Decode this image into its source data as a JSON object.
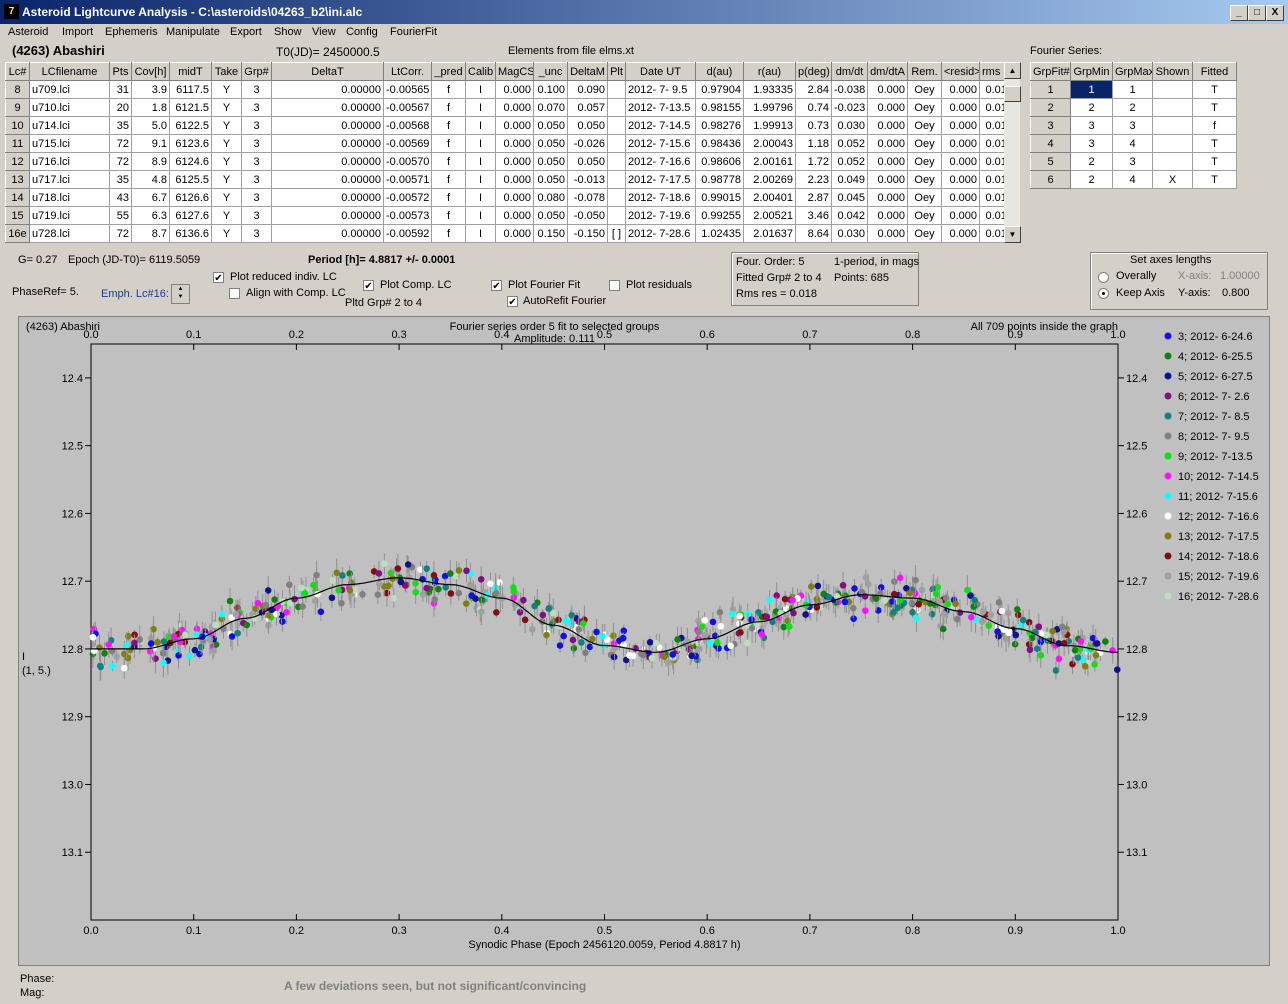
{
  "window": {
    "title": "Asteroid Lightcurve Analysis - C:\\asteroids\\04263_b2\\ini.alc",
    "icon": "app-icon",
    "buttons": [
      "_",
      "□",
      "X"
    ]
  },
  "menu": [
    "Asteroid",
    "Import",
    "Ephemeris",
    "Manipulate",
    "Export",
    "Show",
    "View",
    "Config",
    "FourierFit"
  ],
  "header": {
    "asteroid": "(4263) Abashiri",
    "t0": "T0(JD)= 2450000.5",
    "elements": "Elements from file elms.xt",
    "fourier_label": "Fourier Series:"
  },
  "lc_table": {
    "columns": [
      "Lc#",
      "LCfilename",
      "Pts",
      "Cov[h]",
      "midT",
      "Take",
      "Grp#",
      "DeltaT",
      "LtCorr.",
      "_pred",
      "Calib",
      "MagCS",
      "_unc",
      "DeltaM",
      "Plt",
      "Date UT",
      "d(au)",
      "r(au)",
      "p(deg)",
      "dm/dt",
      "dm/dtA",
      "Rem.",
      "<resid>",
      "rms res"
    ],
    "rows": [
      [
        "8",
        "u709.lci",
        "31",
        "3.9",
        "6117.5",
        "Y",
        "3",
        "0.00000",
        "-0.00565",
        "f",
        "I",
        "0.000",
        "0.100",
        "0.090",
        "",
        "2012- 7- 9.5",
        "0.97904",
        "1.93335",
        "2.84",
        "-0.038",
        "0.000",
        "Oey",
        "0.000",
        "0.014"
      ],
      [
        "9",
        "u710.lci",
        "20",
        "1.8",
        "6121.5",
        "Y",
        "3",
        "0.00000",
        "-0.00567",
        "f",
        "I",
        "0.000",
        "0.070",
        "0.057",
        "",
        "2012- 7-13.5",
        "0.98155",
        "1.99796",
        "0.74",
        "-0.023",
        "0.000",
        "Oey",
        "0.000",
        "0.013"
      ],
      [
        "10",
        "u714.lci",
        "35",
        "5.0",
        "6122.5",
        "Y",
        "3",
        "0.00000",
        "-0.00568",
        "f",
        "I",
        "0.000",
        "0.050",
        "0.050",
        "",
        "2012- 7-14.5",
        "0.98276",
        "1.99913",
        "0.73",
        "0.030",
        "0.000",
        "Oey",
        "0.000",
        "0.017"
      ],
      [
        "11",
        "u715.lci",
        "72",
        "9.1",
        "6123.6",
        "Y",
        "3",
        "0.00000",
        "-0.00569",
        "f",
        "I",
        "0.000",
        "0.050",
        "-0.026",
        "",
        "2012- 7-15.6",
        "0.98436",
        "2.00043",
        "1.18",
        "0.052",
        "0.000",
        "Oey",
        "0.000",
        "0.018"
      ],
      [
        "12",
        "u716.lci",
        "72",
        "8.9",
        "6124.6",
        "Y",
        "3",
        "0.00000",
        "-0.00570",
        "f",
        "I",
        "0.000",
        "0.050",
        "0.050",
        "",
        "2012- 7-16.6",
        "0.98606",
        "2.00161",
        "1.72",
        "0.052",
        "0.000",
        "Oey",
        "0.000",
        "0.016"
      ],
      [
        "13",
        "u717.lci",
        "35",
        "4.8",
        "6125.5",
        "Y",
        "3",
        "0.00000",
        "-0.00571",
        "f",
        "I",
        "0.000",
        "0.050",
        "-0.013",
        "",
        "2012- 7-17.5",
        "0.98778",
        "2.00269",
        "2.23",
        "0.049",
        "0.000",
        "Oey",
        "0.000",
        "0.014"
      ],
      [
        "14",
        "u718.lci",
        "43",
        "6.7",
        "6126.6",
        "Y",
        "3",
        "0.00000",
        "-0.00572",
        "f",
        "I",
        "0.000",
        "0.080",
        "-0.078",
        "",
        "2012- 7-18.6",
        "0.99015",
        "2.00401",
        "2.87",
        "0.045",
        "0.000",
        "Oey",
        "0.000",
        "0.014"
      ],
      [
        "15",
        "u719.lci",
        "55",
        "6.3",
        "6127.6",
        "Y",
        "3",
        "0.00000",
        "-0.00573",
        "f",
        "I",
        "0.000",
        "0.050",
        "-0.050",
        "",
        "2012- 7-19.6",
        "0.99255",
        "2.00521",
        "3.46",
        "0.042",
        "0.000",
        "Oey",
        "0.000",
        "0.016"
      ],
      [
        "16e",
        "u728.lci",
        "72",
        "8.7",
        "6136.6",
        "Y",
        "3",
        "0.00000",
        "-0.00592",
        "f",
        "I",
        "0.000",
        "0.150",
        "-0.150",
        "[ ]",
        "2012- 7-28.6",
        "1.02435",
        "2.01637",
        "8.64",
        "0.030",
        "0.000",
        "Oey",
        "0.000",
        "0.016"
      ]
    ]
  },
  "fourier_table": {
    "columns": [
      "GrpFit#",
      "GrpMin",
      "GrpMax",
      "Shown",
      "Fitted"
    ],
    "rows": [
      [
        "1",
        "1",
        "1",
        "",
        "T"
      ],
      [
        "2",
        "2",
        "2",
        "",
        "T"
      ],
      [
        "3",
        "3",
        "3",
        "",
        "f"
      ],
      [
        "4",
        "3",
        "4",
        "",
        "T"
      ],
      [
        "5",
        "2",
        "3",
        "",
        "T"
      ],
      [
        "6",
        "2",
        "4",
        "X",
        "T"
      ]
    ]
  },
  "controls": {
    "g": "G= 0.27",
    "epoch": "Epoch (JD-T0)= 6119.5059",
    "period": "Period [h]= 4.8817 +/- 0.0001",
    "phase_ref": "PhaseRef= 5.",
    "emph": "Emph. Lc#16:",
    "plot_reduced": "Plot reduced indiv. LC",
    "align_comp": "Align with Comp. LC",
    "plot_comp": "Plot Comp. LC",
    "pltd_grp": "Pltd Grp#  2   to   4",
    "plot_fourier": "Plot Fourier Fit",
    "autorefit": "AutoRefit Fourier",
    "plot_residuals": "Plot residuals",
    "checks": {
      "plot_reduced": true,
      "align_comp": false,
      "plot_comp": true,
      "plot_fourier": true,
      "autorefit": true,
      "plot_residuals": false
    }
  },
  "fit_info": {
    "order": "Four. Order:  5",
    "period_note": "1-period, in mags",
    "fitted": "Fitted Grp# 2 to 4",
    "points": "Points: 685",
    "rms": "Rms res     = 0.018"
  },
  "axes_box": {
    "title": "Set axes lengths",
    "overally": "Overally",
    "keep": "Keep Axis",
    "xaxis_label": "X-axis:",
    "xaxis_val": "1.00000",
    "yaxis_label": "Y-axis:",
    "yaxis_val": "0.800",
    "selected": "keep"
  },
  "footer": {
    "phase": "Phase:",
    "mag": "Mag:",
    "message": "A few deviations seen, but not significant/convincing"
  },
  "chart_data": {
    "type": "scatter",
    "title": "Fourier series order 5 fit to selected groups",
    "subtitle": "Amplitude: 0.111",
    "top_left": "(4263) Abashiri",
    "top_right": "All 709 points inside the graph",
    "xlabel": "Synodic Phase (Epoch 2456120.0059, Period 4.8817 h)",
    "ylabel": "I",
    "ylabel2": "(1, 5.)",
    "xlim": [
      0.0,
      1.0
    ],
    "ylim": [
      13.2,
      12.35
    ],
    "x_ticks": [
      "0.0",
      "0.1",
      "0.2",
      "0.3",
      "0.4",
      "0.5",
      "0.6",
      "0.7",
      "0.8",
      "0.9",
      "1.0"
    ],
    "y_ticks": [
      "12.4",
      "12.5",
      "12.6",
      "12.7",
      "12.8",
      "12.9",
      "13.0",
      "13.1"
    ],
    "fit": {
      "x": [
        0.0,
        0.05,
        0.1,
        0.15,
        0.2,
        0.25,
        0.3,
        0.35,
        0.4,
        0.45,
        0.5,
        0.55,
        0.6,
        0.65,
        0.7,
        0.75,
        0.8,
        0.85,
        0.9,
        0.95,
        1.0
      ],
      "y": [
        12.8,
        12.8,
        12.785,
        12.755,
        12.725,
        12.705,
        12.695,
        12.705,
        12.725,
        12.765,
        12.795,
        12.805,
        12.785,
        12.76,
        12.735,
        12.72,
        12.725,
        12.745,
        12.77,
        12.795,
        12.805
      ]
    },
    "series": [
      {
        "name": "3; 2012- 6-24.6",
        "color": "#1010e0"
      },
      {
        "name": "4; 2012- 6-25.5",
        "color": "#108010"
      },
      {
        "name": "5; 2012- 6-27.5",
        "color": "#101090"
      },
      {
        "name": "6; 2012- 7- 2.6",
        "color": "#801080"
      },
      {
        "name": "7; 2012- 7- 8.5",
        "color": "#108080"
      },
      {
        "name": "8; 2012- 7- 9.5",
        "color": "#808080"
      },
      {
        "name": "9; 2012- 7-13.5",
        "color": "#10e010"
      },
      {
        "name": "10; 2012- 7-14.5",
        "color": "#ff10ff"
      },
      {
        "name": "11; 2012- 7-15.6",
        "color": "#10ffff"
      },
      {
        "name": "12; 2012- 7-16.6",
        "color": "#ffffff"
      },
      {
        "name": "13; 2012- 7-17.5",
        "color": "#808010"
      },
      {
        "name": "14; 2012- 7-18.6",
        "color": "#801010"
      },
      {
        "name": "15; 2012- 7-19.6",
        "color": "#a0a0a0"
      },
      {
        "name": "16; 2012- 7-28.6",
        "color": "#c0dcc0"
      }
    ]
  }
}
